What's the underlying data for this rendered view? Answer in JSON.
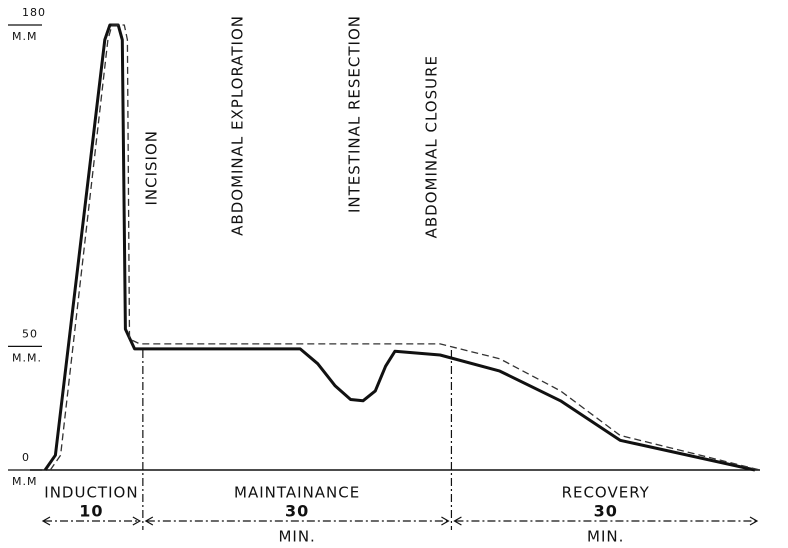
{
  "chart_data": {
    "type": "line",
    "xlim": [
      0,
      70
    ],
    "ylim": [
      0,
      180
    ],
    "yticks": [
      0,
      50,
      180
    ],
    "ytick_units": [
      "M.M",
      "M.M.",
      "M.M"
    ],
    "series": [
      {
        "style": "solid",
        "color": "#111111",
        "x": [
          0.5,
          1.5,
          6.3,
          6.8,
          7.6,
          8.0,
          8.3,
          9.2,
          25.3,
          27.0,
          28.7,
          30.2,
          31.4,
          32.6,
          33.6,
          34.5,
          38.9,
          44.7,
          50.6,
          56.4,
          69.5
        ],
        "y": [
          0,
          6,
          174,
          180,
          180,
          174,
          57,
          49,
          49,
          43,
          34,
          28.5,
          28,
          32,
          42,
          48,
          46.5,
          40,
          28,
          12,
          0
        ]
      },
      {
        "style": "dashed",
        "color": "#333333",
        "x": [
          1.0,
          2.0,
          6.6,
          7.0,
          8.2,
          8.5,
          8.7,
          9.7,
          38.9,
          44.7,
          50.6,
          56.4,
          70
        ],
        "y": [
          0,
          6,
          174,
          180,
          180,
          174,
          53,
          51,
          51,
          45,
          32,
          14,
          0
        ]
      }
    ],
    "annotations": [
      "INCISION",
      "ABDOMINAL  EXPLORATION",
      "INTESTINAL  RESECTION",
      "ABDOMINAL  CLOSURE"
    ],
    "phases": [
      {
        "name": "INDUCTION",
        "duration": 10
      },
      {
        "name": "MAINTAINANCE",
        "duration": 30,
        "unit": "MIN."
      },
      {
        "name": "RECOVERY",
        "duration": 30,
        "unit": "MIN."
      }
    ]
  }
}
